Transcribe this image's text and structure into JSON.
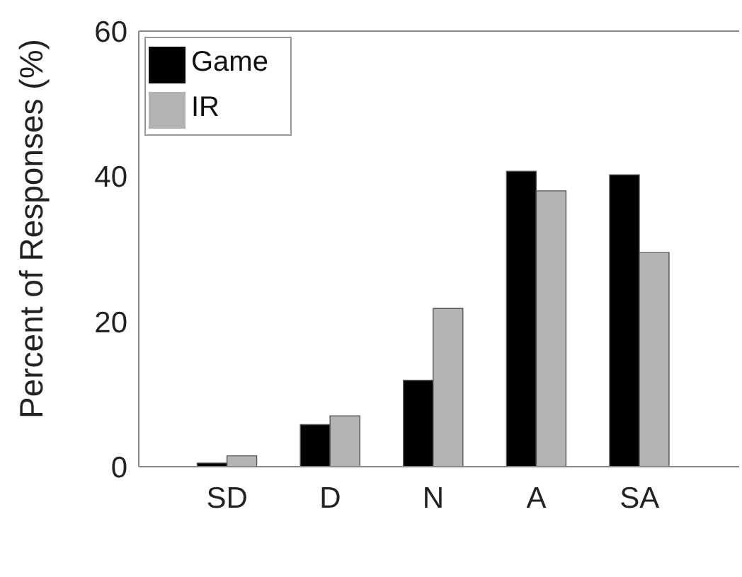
{
  "chart_data": {
    "type": "bar",
    "ylabel": "Percent of Responses (%)",
    "categories": [
      "SD",
      "D",
      "N",
      "A",
      "SA"
    ],
    "series": [
      {
        "name": "Game",
        "color": "#000000",
        "values": [
          0.5,
          5.8,
          11.9,
          40.7,
          40.2
        ]
      },
      {
        "name": "IR",
        "color": "#b3b3b3",
        "values": [
          1.5,
          7.0,
          21.8,
          38.0,
          29.5
        ]
      }
    ],
    "ylim": [
      0,
      60
    ],
    "yticks": [
      0,
      20,
      40,
      60
    ],
    "grid": false,
    "legend": "top left"
  }
}
